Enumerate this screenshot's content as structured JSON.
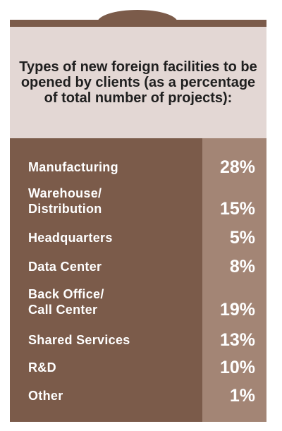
{
  "chart_data": {
    "type": "table",
    "title": "Types of new foreign facilities to be opened by clients (as a percentage of total number of projects):",
    "categories": [
      "Manufacturing",
      "Warehouse/\nDistribution",
      "Headquarters",
      "Data Center",
      "Back Office/\nCall Center",
      "Shared Services",
      "R&D",
      "Other"
    ],
    "values": [
      28,
      15,
      5,
      8,
      19,
      13,
      10,
      1
    ],
    "value_labels": [
      "28%",
      "15%",
      "5%",
      "8%",
      "19%",
      "13%",
      "10%",
      "1%"
    ]
  },
  "colors": {
    "frame": "#7b5b4a",
    "header_bg": "#e3d7d4",
    "value_column": "#a38575",
    "text_light": "#ffffff",
    "text_dark": "#1f1f1f"
  }
}
